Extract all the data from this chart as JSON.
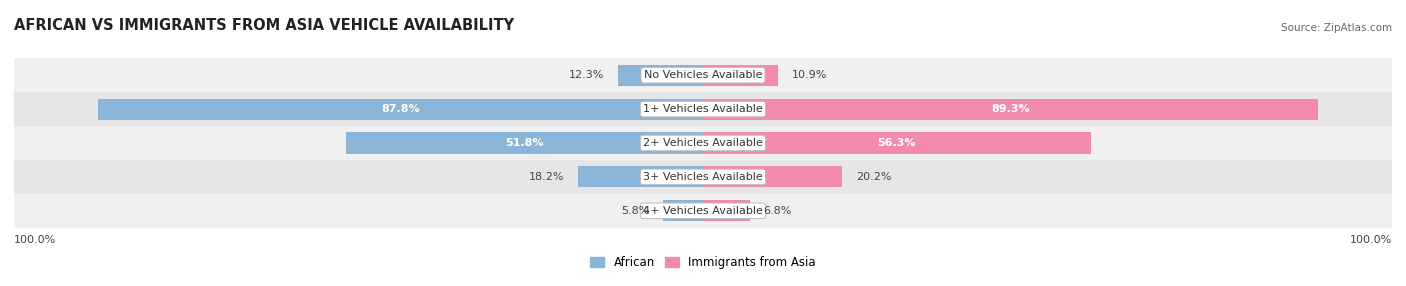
{
  "title": "AFRICAN VS IMMIGRANTS FROM ASIA VEHICLE AVAILABILITY",
  "source": "Source: ZipAtlas.com",
  "categories": [
    "No Vehicles Available",
    "1+ Vehicles Available",
    "2+ Vehicles Available",
    "3+ Vehicles Available",
    "4+ Vehicles Available"
  ],
  "african_values": [
    12.3,
    87.8,
    51.8,
    18.2,
    5.8
  ],
  "asian_values": [
    10.9,
    89.3,
    56.3,
    20.2,
    6.8
  ],
  "african_color": "#8ab4d8",
  "asian_color": "#f28bab",
  "african_color_dark": "#6699cc",
  "asian_color_dark": "#e8527a",
  "row_bg_even": "#f0f0f0",
  "row_bg_odd": "#e6e6e6",
  "max_value": 100.0,
  "bar_height": 0.62,
  "title_fontsize": 10.5,
  "label_fontsize": 8,
  "value_fontsize": 8,
  "legend_fontsize": 8.5,
  "source_fontsize": 7.5
}
